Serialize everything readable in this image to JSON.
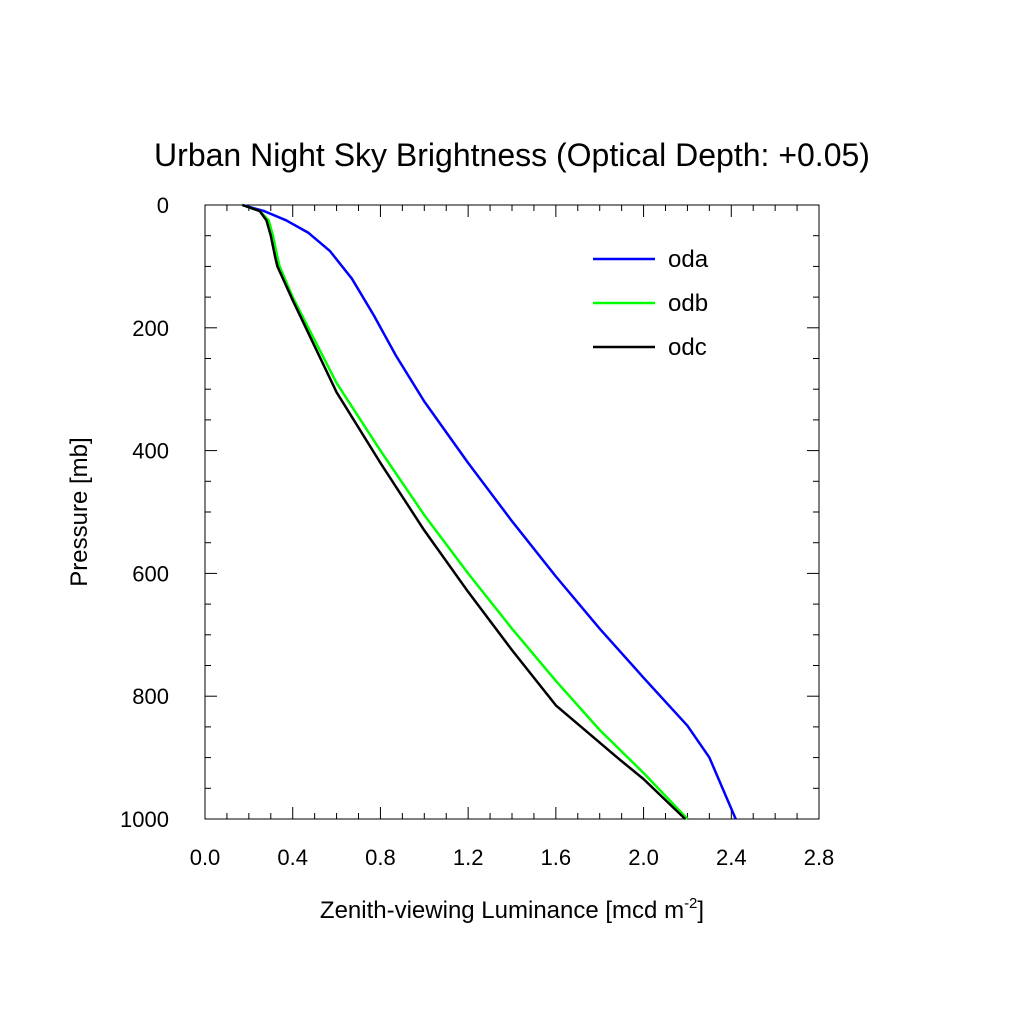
{
  "chart_data": {
    "type": "line",
    "title": "Urban Night Sky Brightness (Optical Depth: +0.05)",
    "xlabel": "Zenith-viewing Luminance [mcd m",
    "xlabel_superscript": "-2",
    "xlabel_suffix": "]",
    "ylabel": "Pressure [mb]",
    "xlim": [
      0.0,
      2.8
    ],
    "ylim": [
      0,
      1000
    ],
    "y_inverted": true,
    "x_ticks": [
      "0.0",
      "0.4",
      "0.8",
      "1.2",
      "1.6",
      "2.0",
      "2.4",
      "2.8"
    ],
    "y_ticks": [
      "0",
      "200",
      "400",
      "600",
      "800",
      "1000"
    ],
    "grid": false,
    "legend_position": "top-right",
    "series": [
      {
        "name": "oda",
        "color": "#0000ff",
        "points": [
          [
            0.17,
            0
          ],
          [
            0.27,
            10
          ],
          [
            0.37,
            25
          ],
          [
            0.47,
            45
          ],
          [
            0.57,
            75
          ],
          [
            0.67,
            120
          ],
          [
            0.77,
            180
          ],
          [
            0.87,
            245
          ],
          [
            1.0,
            320
          ],
          [
            1.2,
            420
          ],
          [
            1.4,
            515
          ],
          [
            1.6,
            605
          ],
          [
            1.8,
            690
          ],
          [
            2.0,
            770
          ],
          [
            2.2,
            848
          ],
          [
            2.3,
            900
          ],
          [
            2.42,
            1000
          ]
        ]
      },
      {
        "name": "odb",
        "color": "#00ff00",
        "points": [
          [
            0.17,
            0
          ],
          [
            0.25,
            10
          ],
          [
            0.29,
            25
          ],
          [
            0.31,
            50
          ],
          [
            0.33,
            85
          ],
          [
            0.34,
            100
          ],
          [
            0.4,
            150
          ],
          [
            0.5,
            220
          ],
          [
            0.6,
            290
          ],
          [
            0.8,
            400
          ],
          [
            1.0,
            505
          ],
          [
            1.2,
            600
          ],
          [
            1.4,
            690
          ],
          [
            1.6,
            775
          ],
          [
            1.8,
            855
          ],
          [
            2.0,
            925
          ],
          [
            2.2,
            1000
          ]
        ]
      },
      {
        "name": "odc",
        "color": "#000000",
        "points": [
          [
            0.17,
            0
          ],
          [
            0.25,
            10
          ],
          [
            0.28,
            25
          ],
          [
            0.3,
            50
          ],
          [
            0.32,
            85
          ],
          [
            0.33,
            100
          ],
          [
            0.4,
            155
          ],
          [
            0.5,
            230
          ],
          [
            0.6,
            305
          ],
          [
            0.8,
            420
          ],
          [
            1.0,
            530
          ],
          [
            1.2,
            630
          ],
          [
            1.4,
            725
          ],
          [
            1.6,
            815
          ],
          [
            1.88,
            900
          ],
          [
            2.0,
            935
          ],
          [
            2.19,
            1000
          ]
        ]
      }
    ]
  }
}
